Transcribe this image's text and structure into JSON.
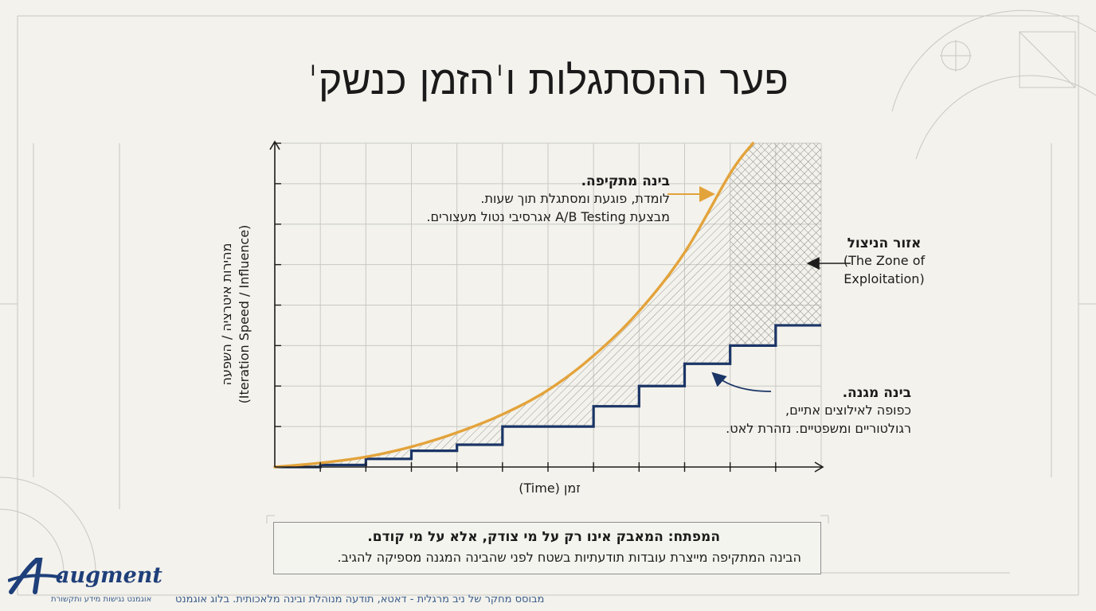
{
  "title": "פער ההסתגלות ו'הזמן כנשק'",
  "colors": {
    "aggressive_curve": "#e3a33b",
    "defensive_steps": "#1b3566",
    "axes": "#1c1c1c",
    "grid": "#c9c9c4",
    "background": "#f3f2ec",
    "arrow_aggressive": "#e3a33b",
    "brand": "#1f3f7a"
  },
  "chart_data": {
    "type": "line",
    "xlabel": "זמן (Time)",
    "ylabel": [
      "מהירות איטרציה / השפעה",
      "(Iteration Speed / Influence)"
    ],
    "grid": true,
    "xlim": [
      0,
      12
    ],
    "ylim": [
      0,
      8
    ],
    "series": [
      {
        "name": "בינה מתקיפה",
        "style": "exponential curve",
        "x": [
          0,
          1,
          2,
          3,
          4,
          5,
          6,
          7,
          8,
          9,
          10,
          10.5
        ],
        "y": [
          0,
          0.1,
          0.25,
          0.5,
          0.85,
          1.3,
          1.9,
          2.75,
          3.85,
          5.3,
          7.25,
          8
        ]
      },
      {
        "name": "בינה מגנה",
        "style": "step",
        "x": [
          0,
          1,
          2,
          3,
          4,
          5,
          6,
          7,
          8,
          9,
          10,
          11,
          12
        ],
        "y": [
          0,
          0.05,
          0.2,
          0.4,
          0.55,
          1.0,
          1.0,
          1.5,
          2.0,
          2.55,
          3.0,
          3.5,
          3.5
        ]
      }
    ],
    "shaded_regions": [
      {
        "between": [
          "בינה מתקיפה",
          "בינה מגנה"
        ],
        "pattern": "diagonal-hatch"
      },
      {
        "name": "אזור הניצול",
        "pattern": "cross-hatch",
        "x_from": 10
      }
    ]
  },
  "annotations": {
    "aggressive": {
      "title": "בינה מתקיפה.",
      "lines": [
        "לומדת, פוגעת ומסתגלת תוך שעות.",
        "מבצעת A/B Testing אגרסיבי נטול מעצורים."
      ]
    },
    "defensive": {
      "title": "בינה מגנה.",
      "lines": [
        "כפופה לאילוצים אתיים,",
        "רגולטוריים ומשפטיים. נזהרת לאט."
      ]
    },
    "zone": {
      "title": "אזור הניצול",
      "lines": [
        "(The Zone of",
        "Exploitation)"
      ]
    }
  },
  "key_box": {
    "title": "המפתח: המאבק אינו רק על מי צודק, אלא על מי קודם.",
    "text": "הבינה המתקיפה מייצרת עובדות תודעתיות בשטח לפני שהבינה המגנה מספיקה להגיב."
  },
  "footer": {
    "credit": "מבוסס מחקר של ניב מרגלית - דאטא, תודעה מנוהלת ובינה מלאכותית. בלוג אוגמנט",
    "logo_word": "augment",
    "logo_tagline": "אוגמנט נגישות מידע ותקשורת"
  }
}
